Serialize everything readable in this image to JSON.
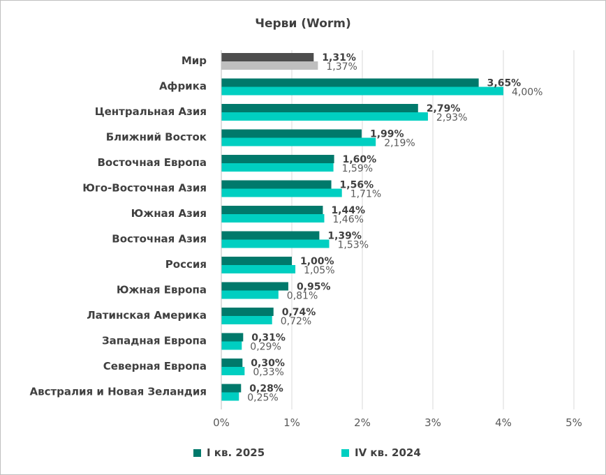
{
  "chart_data": {
    "type": "bar",
    "orientation": "horizontal",
    "title": "Черви (Worm)",
    "categories": [
      "Мир",
      "Африка",
      "Центральная Азия",
      "Ближний Восток",
      "Восточная Европа",
      "Юго-Восточная Азия",
      "Южная Азия",
      "Восточная Азия",
      "Россия",
      "Южная Европа",
      "Латинская Америка",
      "Западная Европа",
      "Северная Европа",
      "Австралия и Новая Зеландия"
    ],
    "series": [
      {
        "name": "I кв. 2025",
        "values": [
          1.31,
          3.65,
          2.79,
          1.99,
          1.6,
          1.56,
          1.44,
          1.39,
          1.0,
          0.95,
          0.74,
          0.31,
          0.3,
          0.28
        ],
        "labels": [
          "1,31%",
          "3,65%",
          "2,79%",
          "1,99%",
          "1,60%",
          "1,56%",
          "1,44%",
          "1,39%",
          "1,00%",
          "0,95%",
          "0,74%",
          "0,31%",
          "0,30%",
          "0,28%"
        ]
      },
      {
        "name": "IV кв. 2024",
        "values": [
          1.37,
          4.0,
          2.93,
          2.19,
          1.59,
          1.71,
          1.46,
          1.53,
          1.05,
          0.81,
          0.72,
          0.29,
          0.33,
          0.25
        ],
        "labels": [
          "1,37%",
          "4,00%",
          "2,93%",
          "2,19%",
          "1,59%",
          "1,71%",
          "1,46%",
          "1,53%",
          "1,05%",
          "0,81%",
          "0,72%",
          "0,29%",
          "0,33%",
          "0,25%"
        ]
      }
    ],
    "xlim": [
      0,
      5
    ],
    "x_ticks": [
      "0%",
      "1%",
      "2%",
      "3%",
      "4%",
      "5%"
    ],
    "grid": true,
    "legend_position": "bottom"
  },
  "colors": {
    "series_a": "#00796b",
    "series_b": "#00cfc1",
    "world_a": "#4d4d4d",
    "world_b": "#bfbfbf",
    "grid": "#d9d9d9"
  }
}
